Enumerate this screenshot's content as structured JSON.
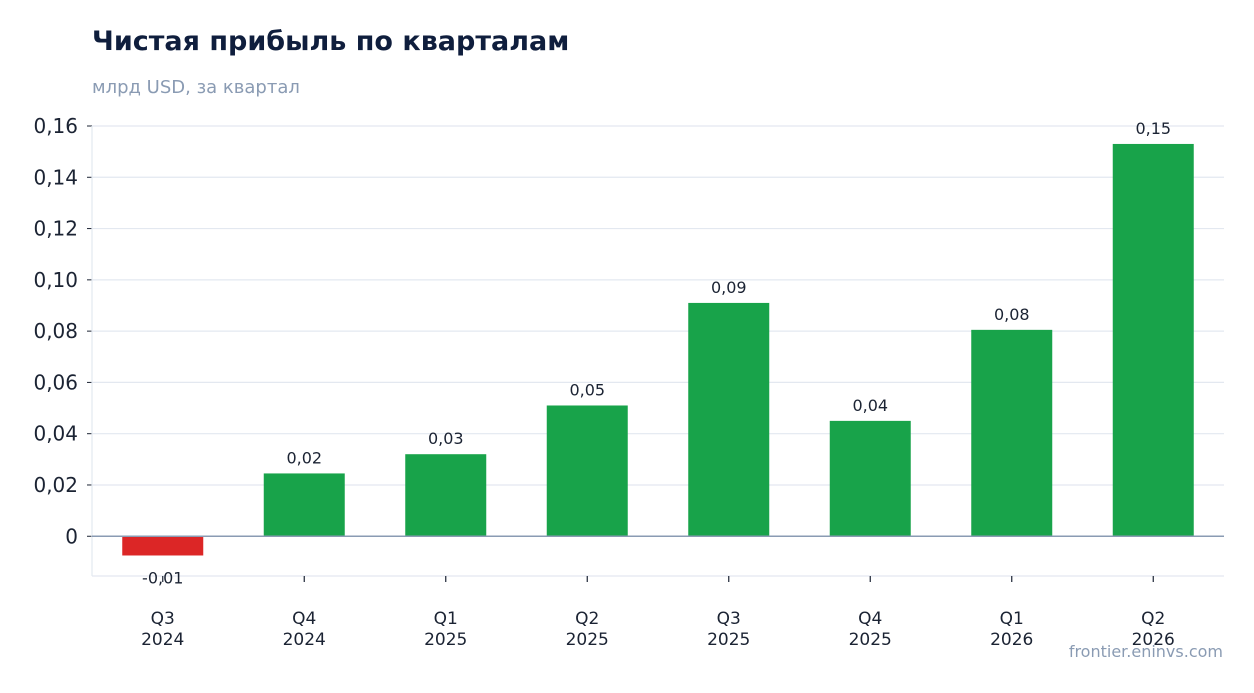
{
  "chart_data": {
    "type": "bar",
    "title": "Чистая прибыль по кварталам",
    "subtitle": "млрд USD, за квартал",
    "categories": [
      [
        "Q3",
        "2024"
      ],
      [
        "Q4",
        "2024"
      ],
      [
        "Q1",
        "2025"
      ],
      [
        "Q2",
        "2025"
      ],
      [
        "Q3",
        "2025"
      ],
      [
        "Q4",
        "2025"
      ],
      [
        "Q1",
        "2026"
      ],
      [
        "Q2",
        "2026"
      ]
    ],
    "values": [
      -0.0075,
      0.0245,
      0.032,
      0.051,
      0.091,
      0.045,
      0.0805,
      0.153
    ],
    "data_labels": [
      "-0,01",
      "0,02",
      "0,03",
      "0,05",
      "0,09",
      "0,04",
      "0,08",
      "0,15"
    ],
    "yticks": [
      0,
      0.02,
      0.04,
      0.06,
      0.08,
      0.1,
      0.12,
      0.14,
      0.16
    ],
    "ytick_labels": [
      "0",
      "0,02",
      "0,04",
      "0,06",
      "0,08",
      "0,10",
      "0,12",
      "0,14",
      "0,16"
    ],
    "ylim": [
      -0.0155,
      0.16
    ],
    "grid": true,
    "colors": {
      "positive": "#18a34a",
      "negative": "#dc2626",
      "grid": "#e3e8f0",
      "zero_line": "#8a9bb3",
      "title": "#0f1e3d",
      "muted": "#8a9bb3"
    }
  },
  "footer": {
    "source": "frontier.eninvs.com"
  }
}
